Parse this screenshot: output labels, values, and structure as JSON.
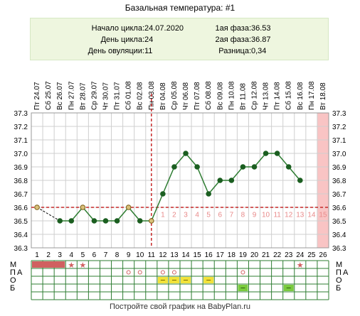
{
  "title": "Базальная температура: #1",
  "info": {
    "left": [
      {
        "label": "Начало цикла: ",
        "value": "24.07.2020"
      },
      {
        "label": "День цикла: ",
        "value": "24"
      },
      {
        "label": "День овуляции: ",
        "value": "11"
      }
    ],
    "right": [
      {
        "label": "1ая фаза: ",
        "value": "36.53"
      },
      {
        "label": "2ая фаза: ",
        "value": "36.87"
      },
      {
        "label": "Разница: ",
        "value": "0,34"
      }
    ]
  },
  "footer": "Постройте свой график на BabyPlan.ru",
  "chart_data": {
    "type": "line",
    "title": "Базальная температура: #1",
    "xlabel": "",
    "ylabel": "",
    "ylim": [
      36.3,
      37.3
    ],
    "y_ticks": [
      "36.3",
      "36.4",
      "36.5",
      "36.6",
      "36.7",
      "36.8",
      "36.9",
      "37.0",
      "37.1",
      "37.2",
      "37.3"
    ],
    "grid": true,
    "days": [
      1,
      2,
      3,
      4,
      5,
      6,
      7,
      8,
      9,
      10,
      11,
      12,
      13,
      14,
      15,
      16,
      17,
      18,
      19,
      20,
      21,
      22,
      23,
      24,
      25,
      26
    ],
    "dates": [
      "Пт 24.07",
      "Сб 25.07",
      "Вс 26.07",
      "Пн 27.07",
      "Вт 28.07",
      "Ср 29.07",
      "Чт 30.07",
      "Пт 31.07",
      "Сб 01.08",
      "Вс 02.08",
      "Пн 03.08",
      "Вт 04.08",
      "Ср 05.08",
      "Чт 06.08",
      "Пт 07.08",
      "Сб 08.08",
      "Вс 09.08",
      "Пн 10.08",
      "Вт 11.08",
      "Ср 12.08",
      "Чт 13.08",
      "Пт 14.08",
      "Сб 15.08",
      "Вс 16.08",
      "Пн 17.08",
      "Вт 18.08"
    ],
    "series": [
      {
        "values": [
          36.6,
          null,
          36.5,
          36.5,
          36.6,
          36.5,
          36.5,
          36.5,
          36.6,
          36.5,
          36.5,
          36.7,
          36.9,
          37.0,
          36.9,
          36.7,
          36.8,
          36.8,
          36.9,
          36.9,
          37.0,
          37.0,
          36.9,
          36.8,
          null,
          null
        ]
      }
    ],
    "coverline": 36.6,
    "ovulation_day": 11,
    "phase2_labels": [
      "1",
      "2",
      "3",
      "4",
      "5",
      "6",
      "7",
      "8",
      "9",
      "10",
      "11",
      "12",
      "13",
      "14",
      "15"
    ],
    "phase2_start_day": 11,
    "highlight_day": 26,
    "row_labels": [
      "М",
      "П",
      "А",
      "О",
      "Б"
    ],
    "marks": {
      "M_bar_days": [
        1,
        2,
        3
      ],
      "M_star_days": [
        4,
        5,
        24
      ],
      "PA_circle_days": [
        9,
        10,
        12,
        13,
        19
      ],
      "O_yellow_days": [
        12,
        13,
        14,
        16
      ],
      "B_green_days": [
        19,
        23
      ]
    }
  }
}
